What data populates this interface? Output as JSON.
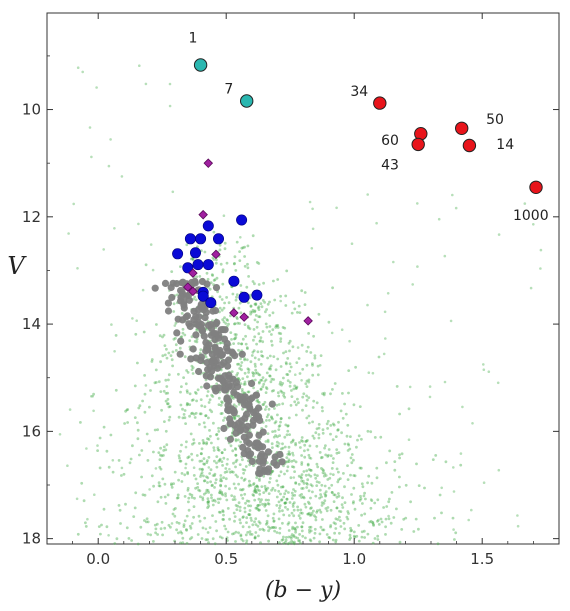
{
  "chart_data": {
    "type": "scatter",
    "title": "",
    "xlabel": "(b − y)",
    "ylabel": "V",
    "xlim": [
      -0.2,
      1.8
    ],
    "ylim": [
      18.1,
      8.2
    ],
    "y_inverted": true,
    "x_ticks": [
      {
        "value": 0.0,
        "label": "0.0"
      },
      {
        "value": 0.5,
        "label": "0.5"
      },
      {
        "value": 1.0,
        "label": "1.0"
      },
      {
        "value": 1.5,
        "label": "1.5"
      }
    ],
    "y_ticks": [
      {
        "value": 10,
        "label": "10"
      },
      {
        "value": 12,
        "label": "12"
      },
      {
        "value": 14,
        "label": "14"
      },
      {
        "value": 16,
        "label": "16"
      },
      {
        "value": 18,
        "label": "18"
      }
    ],
    "grid": false,
    "legend": null,
    "colors": {
      "field": "#4caf50",
      "members": "#7f7f7f",
      "blue": "#0a0ad6",
      "magenta": "#a020a0",
      "cyan": "#2ab7b0",
      "red": "#e8141b"
    },
    "series": [
      {
        "marker": "small-dot",
        "color": "#4caf50",
        "distribution": "field-stars-cloud",
        "points": []
      },
      {
        "marker": "dot",
        "color": "#7f7f7f",
        "distribution": "cluster-sequence",
        "points": []
      },
      {
        "marker": "circle",
        "color": "#0a0ad6",
        "points": [
          [
            0.31,
            12.69
          ],
          [
            0.36,
            12.41
          ],
          [
            0.4,
            12.41
          ],
          [
            0.43,
            12.17
          ],
          [
            0.47,
            12.41
          ],
          [
            0.56,
            12.06
          ],
          [
            0.38,
            12.67
          ],
          [
            0.35,
            12.95
          ],
          [
            0.39,
            12.89
          ],
          [
            0.43,
            12.89
          ],
          [
            0.41,
            13.41
          ],
          [
            0.41,
            13.48
          ],
          [
            0.44,
            13.6
          ],
          [
            0.53,
            13.2
          ],
          [
            0.57,
            13.5
          ],
          [
            0.62,
            13.46
          ]
        ]
      },
      {
        "marker": "diamond",
        "color": "#a020a0",
        "points": [
          [
            0.43,
            11.0
          ],
          [
            0.41,
            11.96
          ],
          [
            0.46,
            12.7
          ],
          [
            0.37,
            13.05
          ],
          [
            0.35,
            13.31
          ],
          [
            0.37,
            13.39
          ],
          [
            0.53,
            13.79
          ],
          [
            0.57,
            13.87
          ],
          [
            0.82,
            13.94
          ]
        ]
      },
      {
        "marker": "circle",
        "color": "#2ab7b0",
        "points": [
          [
            0.4,
            9.17
          ],
          [
            0.58,
            9.84
          ]
        ]
      },
      {
        "marker": "circle",
        "color": "#e8141b",
        "points": [
          [
            1.1,
            9.88
          ],
          [
            1.26,
            10.45
          ],
          [
            1.25,
            10.65
          ],
          [
            1.42,
            10.35
          ],
          [
            1.45,
            10.67
          ],
          [
            1.71,
            11.45
          ]
        ]
      }
    ],
    "annotations": [
      {
        "text": "1",
        "x": 0.37,
        "y": 8.75
      },
      {
        "text": "7",
        "x": 0.51,
        "y": 9.7
      },
      {
        "text": "34",
        "x": 1.02,
        "y": 9.75
      },
      {
        "text": "60",
        "x": 1.14,
        "y": 10.66
      },
      {
        "text": "43",
        "x": 1.14,
        "y": 11.12
      },
      {
        "text": "50",
        "x": 1.55,
        "y": 10.27
      },
      {
        "text": "14",
        "x": 1.59,
        "y": 10.74
      },
      {
        "text": "1000",
        "x": 1.69,
        "y": 12.06
      }
    ]
  }
}
